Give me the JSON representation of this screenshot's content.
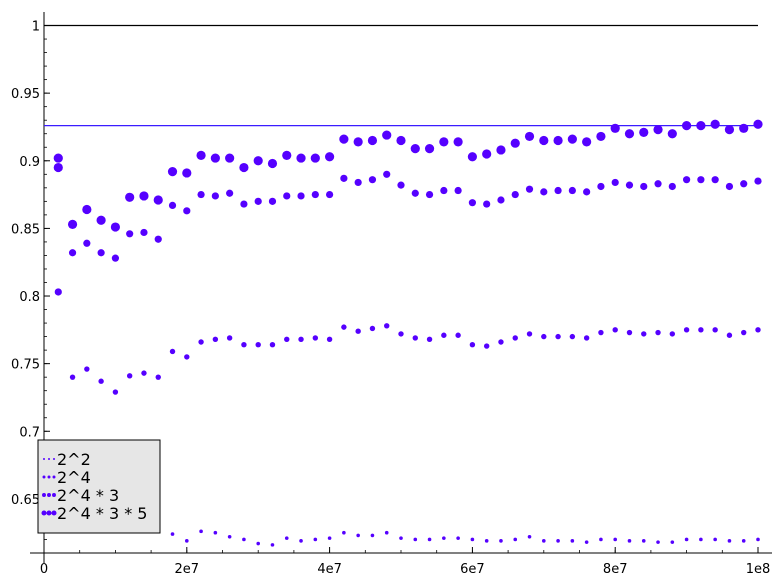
{
  "chart_data": {
    "type": "scatter",
    "title": "",
    "xlabel": "",
    "ylabel": "",
    "xlim": [
      0,
      100000000
    ],
    "ylim": [
      0.61,
      1.01
    ],
    "x_ticks": [
      {
        "value": 0,
        "label": "0"
      },
      {
        "value": 20000000,
        "label": "2e7"
      },
      {
        "value": 40000000,
        "label": "4e7"
      },
      {
        "value": 60000000,
        "label": "6e7"
      },
      {
        "value": 80000000,
        "label": "8e7"
      },
      {
        "value": 100000000,
        "label": "1e8"
      }
    ],
    "y_ticks": [
      {
        "value": 0.65,
        "label": "0.65"
      },
      {
        "value": 0.7,
        "label": "0.7"
      },
      {
        "value": 0.75,
        "label": "0.75"
      },
      {
        "value": 0.8,
        "label": "0.8"
      },
      {
        "value": 0.85,
        "label": "0.85"
      },
      {
        "value": 0.9,
        "label": "0.9"
      },
      {
        "value": 0.95,
        "label": "0.95"
      },
      {
        "value": 1.0,
        "label": "1"
      }
    ],
    "grid": false,
    "legend_position": "bottom-left",
    "colors": {
      "points": "#5500ff",
      "horizontal_line": "#3b1cff",
      "reference_line": "#000000"
    },
    "reference_lines": [
      {
        "y": 1.0,
        "color": "#000000"
      },
      {
        "y": 0.926,
        "color": "#3b1cff"
      }
    ],
    "x": [
      2000000,
      4000000,
      6000000,
      8000000,
      10000000,
      12000000,
      14000000,
      16000000,
      18000000,
      20000000,
      22000000,
      24000000,
      26000000,
      28000000,
      30000000,
      32000000,
      34000000,
      36000000,
      38000000,
      40000000,
      42000000,
      44000000,
      46000000,
      48000000,
      50000000,
      52000000,
      54000000,
      56000000,
      58000000,
      60000000,
      62000000,
      64000000,
      66000000,
      68000000,
      70000000,
      72000000,
      74000000,
      76000000,
      78000000,
      80000000,
      82000000,
      84000000,
      86000000,
      88000000,
      90000000,
      92000000,
      94000000,
      96000000,
      98000000,
      100000000
    ],
    "series": [
      {
        "name": "2^2",
        "marker_size": 1.8,
        "values": [
          null,
          null,
          null,
          null,
          null,
          null,
          null,
          null,
          0.624,
          0.619,
          0.626,
          0.625,
          0.622,
          0.62,
          0.617,
          0.616,
          0.621,
          0.619,
          0.62,
          0.621,
          0.625,
          0.623,
          0.623,
          0.625,
          0.621,
          0.62,
          0.62,
          0.621,
          0.621,
          0.62,
          0.619,
          0.619,
          0.62,
          0.622,
          0.619,
          0.619,
          0.619,
          0.618,
          0.62,
          0.62,
          0.619,
          0.619,
          0.618,
          0.618,
          0.62,
          0.62,
          0.62,
          0.619,
          0.619,
          0.62
        ]
      },
      {
        "name": "2^4",
        "marker_size": 2.7,
        "values": [
          null,
          0.74,
          0.746,
          0.737,
          0.729,
          0.741,
          0.743,
          0.74,
          0.759,
          0.755,
          0.766,
          0.768,
          0.769,
          0.764,
          0.764,
          0.764,
          0.768,
          0.768,
          0.769,
          0.768,
          0.777,
          0.774,
          0.776,
          0.778,
          0.772,
          0.769,
          0.768,
          0.771,
          0.771,
          0.764,
          0.763,
          0.766,
          0.769,
          0.772,
          0.77,
          0.77,
          0.77,
          0.769,
          0.773,
          0.775,
          0.773,
          0.772,
          0.773,
          0.772,
          0.775,
          0.775,
          0.775,
          0.771,
          0.773,
          0.775
        ]
      },
      {
        "name": "2^4 * 3",
        "marker_size": 3.6,
        "values": [
          0.803,
          0.832,
          0.839,
          0.832,
          0.828,
          0.846,
          0.847,
          0.842,
          0.867,
          0.863,
          0.875,
          0.874,
          0.876,
          0.868,
          0.87,
          0.87,
          0.874,
          0.874,
          0.875,
          0.875,
          0.887,
          0.884,
          0.886,
          0.89,
          0.882,
          0.876,
          0.875,
          0.878,
          0.878,
          0.869,
          0.868,
          0.871,
          0.875,
          0.879,
          0.877,
          0.878,
          0.878,
          0.877,
          0.881,
          0.884,
          0.882,
          0.881,
          0.883,
          0.881,
          0.886,
          0.886,
          0.886,
          0.881,
          0.883,
          0.885
        ]
      },
      {
        "name": "2^4 * 3 * 5",
        "marker_size": 4.6,
        "values": [
          0.902,
          0.853,
          0.864,
          0.856,
          0.851,
          0.873,
          0.874,
          0.871,
          0.892,
          0.891,
          0.904,
          0.902,
          0.902,
          0.895,
          0.9,
          0.898,
          0.904,
          0.902,
          0.902,
          0.903,
          0.916,
          0.914,
          0.915,
          0.919,
          0.915,
          0.909,
          0.909,
          0.914,
          0.914,
          0.903,
          0.905,
          0.908,
          0.913,
          0.918,
          0.915,
          0.915,
          0.916,
          0.914,
          0.918,
          0.924,
          0.92,
          0.921,
          0.923,
          0.92,
          0.926,
          0.926,
          0.927,
          0.923,
          0.924,
          0.927
        ]
      }
    ],
    "extra_point": {
      "series": "2^4 * 3 * 5",
      "x": 2000000,
      "y": 0.895
    }
  }
}
